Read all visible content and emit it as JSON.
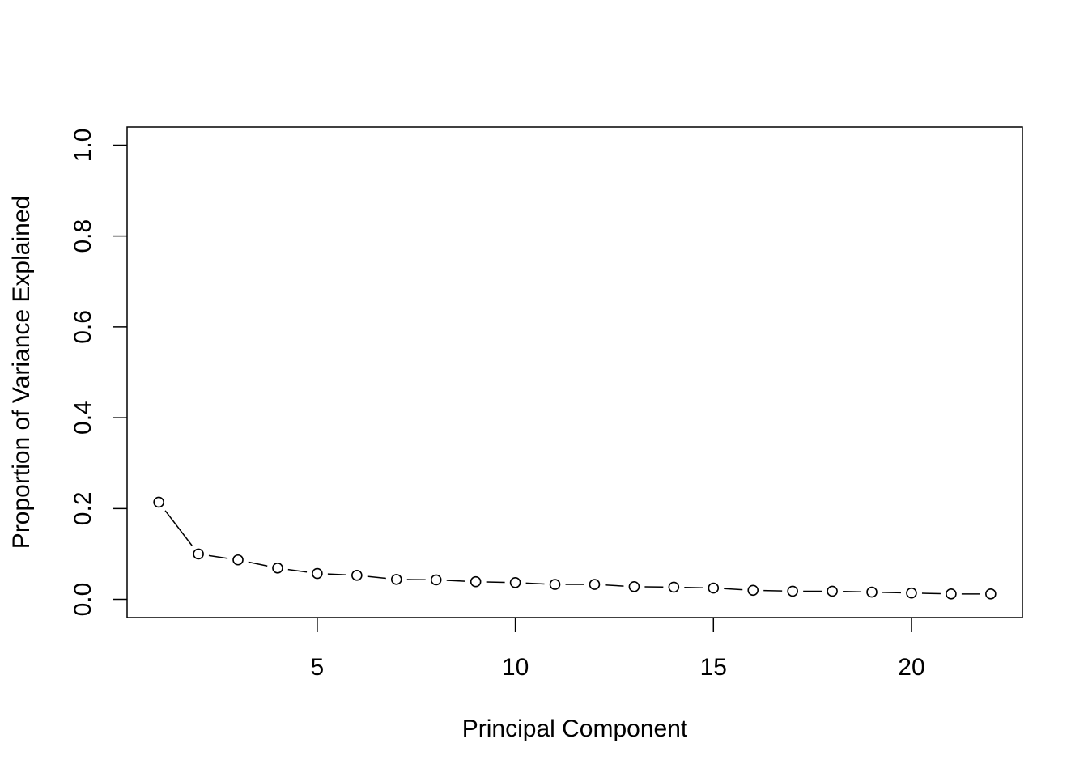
{
  "chart_data": {
    "type": "line",
    "style": "points-and-lines",
    "title": "",
    "xlabel": "Principal Component",
    "ylabel": "Proportion of Variance Explained",
    "xlim": [
      0.2,
      22.8
    ],
    "ylim": [
      -0.04,
      1.04
    ],
    "x_ticks": [
      5,
      10,
      15,
      20
    ],
    "x_tick_labels": [
      "5",
      "10",
      "15",
      "20"
    ],
    "y_ticks": [
      0.0,
      0.2,
      0.4,
      0.6,
      0.8,
      1.0
    ],
    "y_tick_labels": [
      "0.0",
      "0.2",
      "0.4",
      "0.6",
      "0.8",
      "1.0"
    ],
    "grid": false,
    "color": "#000000",
    "x": [
      1,
      2,
      3,
      4,
      5,
      6,
      7,
      8,
      9,
      10,
      11,
      12,
      13,
      14,
      15,
      16,
      17,
      18,
      19,
      20,
      21,
      22
    ],
    "values": [
      0.214,
      0.1,
      0.087,
      0.069,
      0.057,
      0.053,
      0.044,
      0.043,
      0.039,
      0.037,
      0.033,
      0.033,
      0.028,
      0.027,
      0.025,
      0.02,
      0.018,
      0.018,
      0.016,
      0.014,
      0.012,
      0.012
    ]
  }
}
